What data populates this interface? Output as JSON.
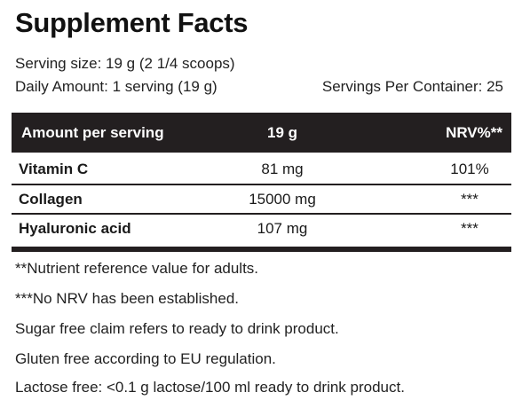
{
  "title": "Supplement Facts",
  "serving_size": "Serving size: 19 g (2 1/4 scoops)",
  "daily_amount": "Daily Amount: 1 serving (19 g)",
  "servings_per_container": "Servings Per Container: 25",
  "table": {
    "headers": {
      "amount": "Amount per serving",
      "quantity": "19 g",
      "nrv": "NRV%**"
    },
    "rows": [
      {
        "name": "Vitamin C",
        "quantity": "81 mg",
        "nrv": "101%"
      },
      {
        "name": "Collagen",
        "quantity": "15000 mg",
        "nrv": "***"
      },
      {
        "name": "Hyaluronic acid",
        "quantity": "107 mg",
        "nrv": "***"
      }
    ]
  },
  "footnotes": [
    "**Nutrient reference value for adults.",
    "***No NRV has been established.",
    "Sugar free claim refers to ready to drink product.",
    "Gluten free according to EU regulation.",
    "Lactose free: <0.1 g lactose/100 ml ready to drink product."
  ]
}
